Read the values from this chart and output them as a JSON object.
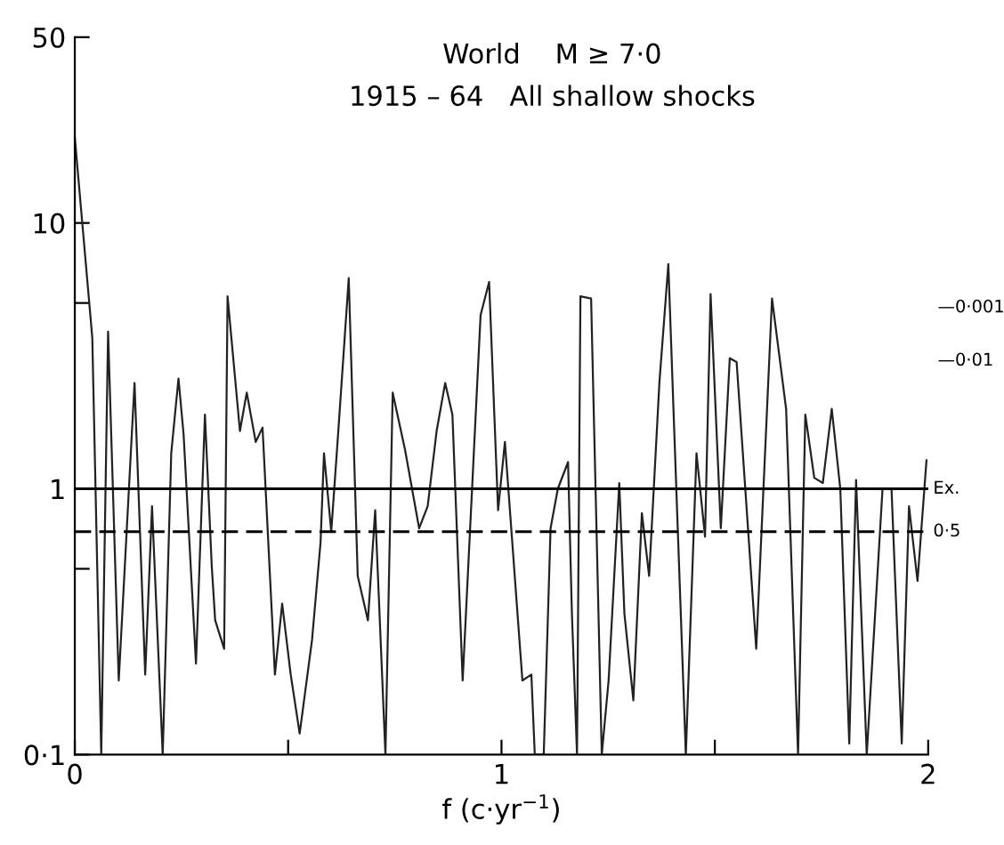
{
  "chart_data": {
    "type": "line",
    "title": "World    M ≥ 7·0",
    "subtitle": "1915 – 64   All shallow shocks",
    "xlabel": "f (c·yr$^{−1}$)",
    "log": "y",
    "xlim": [
      0,
      2
    ],
    "ylim": [
      0.1,
      50
    ],
    "xticks": [
      0,
      {
        "value": 0.5,
        "label": null
      },
      1,
      {
        "value": 1.5,
        "label": null
      },
      2
    ],
    "yticks": [
      {
        "value": 0.1,
        "label": "0·1"
      },
      {
        "value": 0.5,
        "label": null
      },
      1,
      {
        "value": 5,
        "label": null
      },
      10,
      50
    ],
    "grid": false,
    "legend": false,
    "marker": "none",
    "line_style": "solid",
    "ref_lines": [
      {
        "axis": "y",
        "value": 1,
        "label": "Ex.",
        "line_style": "solid",
        "color": "#000000"
      },
      {
        "axis": "y",
        "value": 0.69,
        "line_style": "dashed",
        "color": "#000000"
      }
    ],
    "annotations": [
      {
        "text": "0·5",
        "x": 2,
        "y": 0.69
      },
      "—0·001",
      "—0·01"
    ],
    "series": [
      {
        "color": "#222222",
        "x": [
          0,
          0.041,
          0.062,
          0.078,
          0.103,
          0.14,
          0.165,
          0.181,
          0.206,
          0.226,
          0.243,
          0.255,
          0.284,
          0.305,
          0.321,
          0.329,
          0.35,
          0.358,
          0.387,
          0.403,
          0.424,
          0.44,
          0.469,
          0.486,
          0.506,
          0.527,
          0.556,
          0.576,
          0.584,
          0.601,
          0.617,
          0.642,
          0.663,
          0.687,
          0.704,
          0.728,
          0.745,
          0.774,
          0.807,
          0.827,
          0.848,
          0.868,
          0.885,
          0.909,
          0.951,
          0.971,
          0.992,
          1.008,
          1.049,
          1.07,
          1.078,
          1.099,
          1.115,
          1.132,
          1.156,
          1.165,
          1.177,
          1.185,
          1.21,
          1.235,
          1.251,
          1.276,
          1.288,
          1.309,
          1.329,
          1.346,
          1.37,
          1.391,
          1.403,
          1.432,
          1.457,
          1.477,
          1.49,
          1.514,
          1.535,
          1.551,
          1.597,
          1.634,
          1.667,
          1.695,
          1.712,
          1.733,
          1.753,
          1.774,
          1.794,
          1.815,
          1.831,
          1.856,
          1.893,
          1.914,
          1.938,
          1.955,
          1.975,
          1.996
        ],
        "values": [
          21,
          3.7,
          0.1,
          3.9,
          0.19,
          2.5,
          0.2,
          0.86,
          0.1,
          1.36,
          2.6,
          1.6,
          0.22,
          1.9,
          0.51,
          0.32,
          0.25,
          5.3,
          1.65,
          2.3,
          1.5,
          1.7,
          0.2,
          0.37,
          0.2,
          0.12,
          0.27,
          0.63,
          1.36,
          0.69,
          1.6,
          6.2,
          0.47,
          0.32,
          0.83,
          0.1,
          2.3,
          1.4,
          0.71,
          0.86,
          1.65,
          2.5,
          1.9,
          0.19,
          4.5,
          6.0,
          0.83,
          1.5,
          0.19,
          0.2,
          0.1,
          0.1,
          0.71,
          1.0,
          1.26,
          0.34,
          0.1,
          5.3,
          5.2,
          0.1,
          0.19,
          1.05,
          0.34,
          0.16,
          0.81,
          0.47,
          2.5,
          7.0,
          2.0,
          0.1,
          1.36,
          0.66,
          5.4,
          0.71,
          3.1,
          3.0,
          0.25,
          5.2,
          2.0,
          0.1,
          1.9,
          1.1,
          1.05,
          2.0,
          1.0,
          0.11,
          1.08,
          0.1,
          1.0,
          1.0,
          0.11,
          0.86,
          0.45,
          1.28
        ]
      }
    ]
  }
}
